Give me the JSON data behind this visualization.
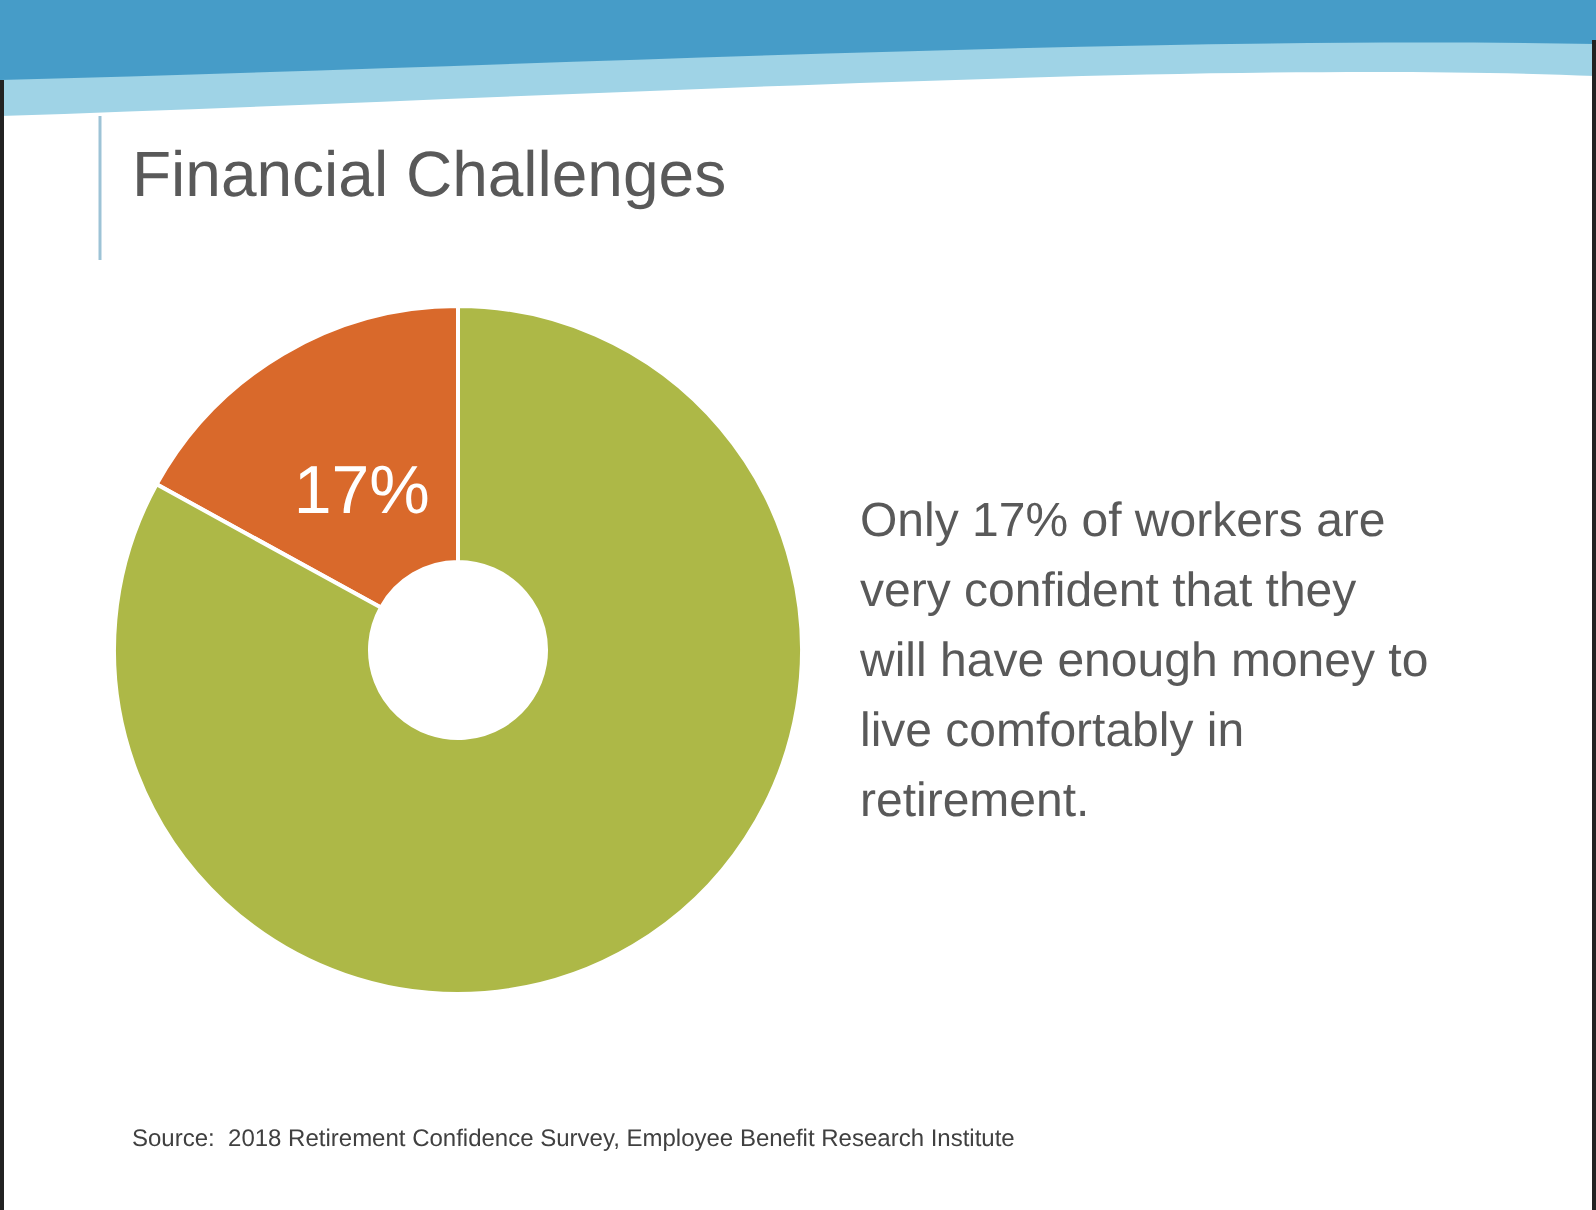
{
  "chart_data": {
    "type": "donut",
    "title": "Financial Challenges",
    "categories": [
      null,
      null
    ],
    "values": [
      17,
      83
    ],
    "colors": [
      "#d9692b",
      "#adb847"
    ],
    "value_labels": [
      "17%",
      null
    ],
    "annotations": [
      "Only 17% of workers are very confident that they will have enough money to live comfortably in retirement.",
      "Source:  2018 Retirement Confidence Survey, Employee Benefit Research Institute"
    ]
  }
}
